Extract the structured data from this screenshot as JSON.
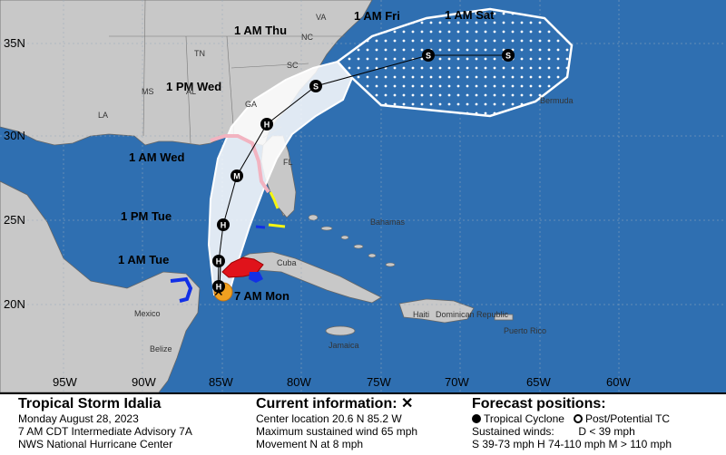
{
  "map": {
    "lat_labels": [
      "35N",
      "30N",
      "25N",
      "20N"
    ],
    "lon_labels": [
      "95W",
      "90W",
      "85W",
      "80W",
      "75W",
      "70W",
      "65W",
      "60W"
    ],
    "state_labels": [
      "VA",
      "NC",
      "SC",
      "TN",
      "MS",
      "AL",
      "GA",
      "LA",
      "FL"
    ],
    "country_labels": [
      "Mexico",
      "Belize",
      "Cuba",
      "Bahamas",
      "Haiti",
      "Dominican Republic",
      "Jamaica",
      "Puerto Rico",
      "Bermuda"
    ],
    "forecast_points": [
      {
        "label": "7 AM Mon",
        "type": "current"
      },
      {
        "label": "",
        "type": "H"
      },
      {
        "label": "1 AM Tue",
        "type": "H"
      },
      {
        "label": "1 PM Tue",
        "type": "H"
      },
      {
        "label": "1 AM Wed",
        "type": "M"
      },
      {
        "label": "1 PM Wed",
        "type": "H"
      },
      {
        "label": "1 AM Thu",
        "type": "S"
      },
      {
        "label": "1 AM Fri",
        "type": "S"
      },
      {
        "label": "1 AM Sat",
        "type": "S"
      }
    ],
    "colors": {
      "ocean": "#2f6fb1",
      "land": "#c8c8c8",
      "cone": "#ffffff",
      "hurricane_warning": "#e0131b",
      "hurricane_watch": "#f2b3c0",
      "ts_warning": "#1230e6",
      "ts_watch": "#f5f512",
      "current_wind": "#f0a020"
    }
  },
  "legend": {
    "storm_name": "Tropical Storm Idalia",
    "date": "Monday August 28, 2023",
    "advisory": "7 AM CDT Intermediate Advisory 7A",
    "center": "NWS National Hurricane Center",
    "current_title": "Current information: ✕",
    "center_location": "Center location 20.6 N 85.2 W",
    "max_wind": "Maximum sustained wind 65 mph",
    "movement": "Movement N at 8 mph",
    "forecast_title": "Forecast positions:",
    "tropical_cyclone": "Tropical Cyclone",
    "post_tc": "Post/Potential TC",
    "sustained_winds": "Sustained winds:",
    "d_label": "D < 39 mph",
    "wind_classes": "S 39-73 mph  H 74-110 mph  M > 110 mph"
  }
}
